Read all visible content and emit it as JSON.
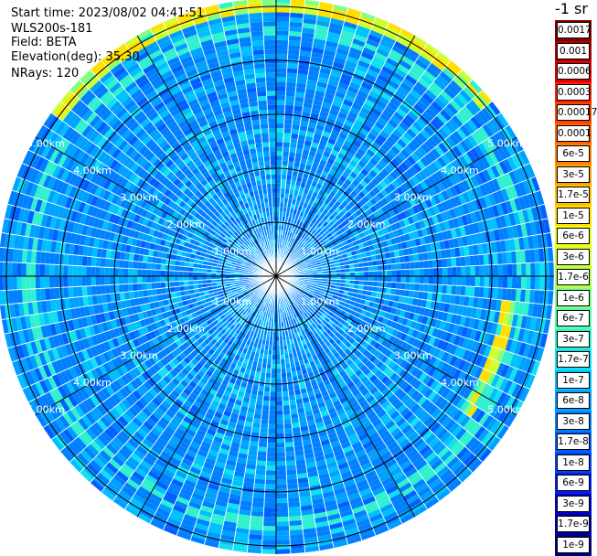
{
  "header": {
    "start_time": "Start time: 2023/08/02 04:41:51",
    "instrument": "WLS200s-181",
    "field": "Field: BETA",
    "elevation": "Elevation(deg): 35.30",
    "nrays": "NRays: 120"
  },
  "colorbar": {
    "title": "-1 sr",
    "labels": [
      "0.0017",
      "0.001",
      "0.0006",
      "0.0003",
      "0.00017",
      "0.0001",
      "6e-5",
      "3e-5",
      "1.7e-5",
      "1e-5",
      "6e-6",
      "3e-6",
      "1.7e-6",
      "1e-6",
      "6e-7",
      "3e-7",
      "1.7e-7",
      "1e-7",
      "6e-8",
      "3e-8",
      "1.7e-8",
      "1e-8",
      "6e-9",
      "3e-9",
      "1.7e-9",
      "1e-9"
    ],
    "colors": [
      "#800000",
      "#b00000",
      "#e00000",
      "#ff2000",
      "#ff4000",
      "#ff6000",
      "#ff8000",
      "#ffa000",
      "#ffc000",
      "#ffe000",
      "#f0ff10",
      "#d0ff30",
      "#b0ff50",
      "#80ff80",
      "#50ffb0",
      "#30f0d0",
      "#10e0f0",
      "#00c0ff",
      "#00a0ff",
      "#0080ff",
      "#0060ff",
      "#0040ff",
      "#0020f0",
      "#0000d0",
      "#0000a0",
      "#000080"
    ]
  },
  "chart_data": {
    "type": "heatmap",
    "projection": "polar (PPI)",
    "field": "BETA",
    "n_rays": 120,
    "range_ring_labels": [
      "1.00km",
      "2.00km",
      "3.00km",
      "4.00km",
      "5.00km"
    ],
    "range_rings_km": [
      1,
      2,
      3,
      4,
      5
    ],
    "max_range_km": 5.15,
    "grid": true,
    "spoke_angles_deg": [
      0,
      30,
      60,
      90,
      120,
      150,
      180,
      210,
      240,
      270,
      300,
      330
    ],
    "color_scale": "log",
    "value_range": [
      1e-09,
      0.0017
    ],
    "features": [
      {
        "description": "high backscatter arc",
        "range_km": 5.0,
        "azimuth_deg_start": 305,
        "azimuth_deg_end": 50,
        "level": "1e-5 to 3e-5"
      },
      {
        "description": "high backscatter arc",
        "range_km": 4.3,
        "azimuth_deg_start": 95,
        "azimuth_deg_end": 125,
        "level": "1e-5 to 3e-5"
      },
      {
        "description": "moderate ring",
        "range_km": 4.6,
        "azimuth_deg_start": 0,
        "azimuth_deg_end": 360,
        "level": "1e-7 to 3e-7"
      }
    ]
  }
}
